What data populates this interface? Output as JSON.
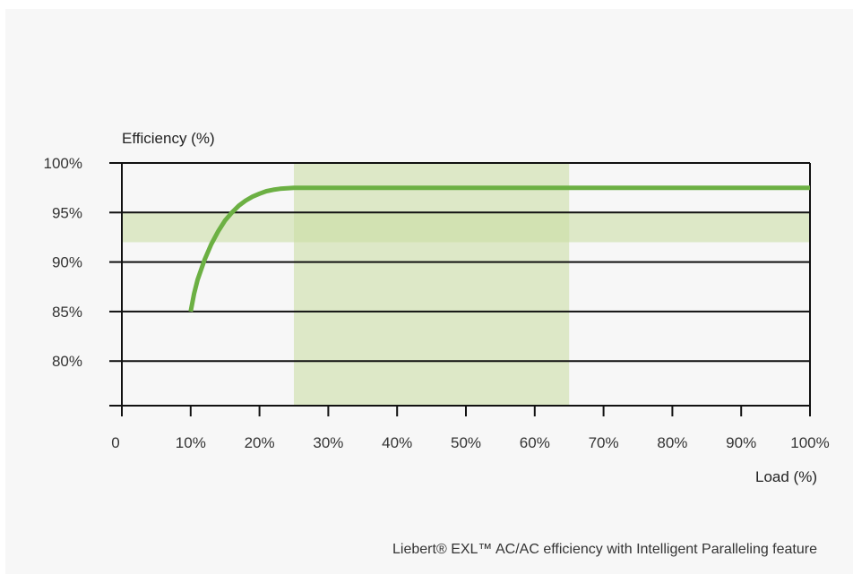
{
  "chart_data": {
    "type": "line",
    "ylabel": "Efficiency (%)",
    "xlabel": "Load (%)",
    "x_ticks": [
      "0",
      "10%",
      "20%",
      "30%",
      "40%",
      "50%",
      "60%",
      "70%",
      "80%",
      "90%",
      "100%"
    ],
    "y_ticks": [
      {
        "value": 100,
        "label": "100%"
      },
      {
        "value": 95,
        "label": "95%"
      },
      {
        "value": 90,
        "label": "90%"
      },
      {
        "value": 85,
        "label": "85%"
      },
      {
        "value": 80,
        "label": "80%"
      }
    ],
    "xlim": [
      0,
      100
    ],
    "ylim": [
      75.5,
      100
    ],
    "grid": "horizontal",
    "series": [
      {
        "color": "#6cb043",
        "x": [
          10,
          10.5,
          11,
          12,
          13,
          14,
          15,
          16,
          17,
          18,
          19,
          20,
          21,
          22,
          23,
          24,
          25,
          30,
          40,
          50,
          60,
          70,
          80,
          90,
          100
        ],
        "y": [
          85,
          86.8,
          88.2,
          90.2,
          91.8,
          93.1,
          94.2,
          95.0,
          95.7,
          96.2,
          96.6,
          96.9,
          97.15,
          97.3,
          97.4,
          97.45,
          97.5,
          97.5,
          97.5,
          97.5,
          97.5,
          97.5,
          97.5,
          97.5,
          97.5
        ]
      }
    ],
    "highlight_bands": [
      {
        "axis": "x",
        "from": 25,
        "to": 65,
        "color": "#c8dca0"
      },
      {
        "axis": "y",
        "from": 92,
        "to": 95,
        "color": "#c8dca0"
      }
    ]
  },
  "caption": "Liebert® EXL™  AC/AC efficiency with Intelligent Paralleling feature"
}
